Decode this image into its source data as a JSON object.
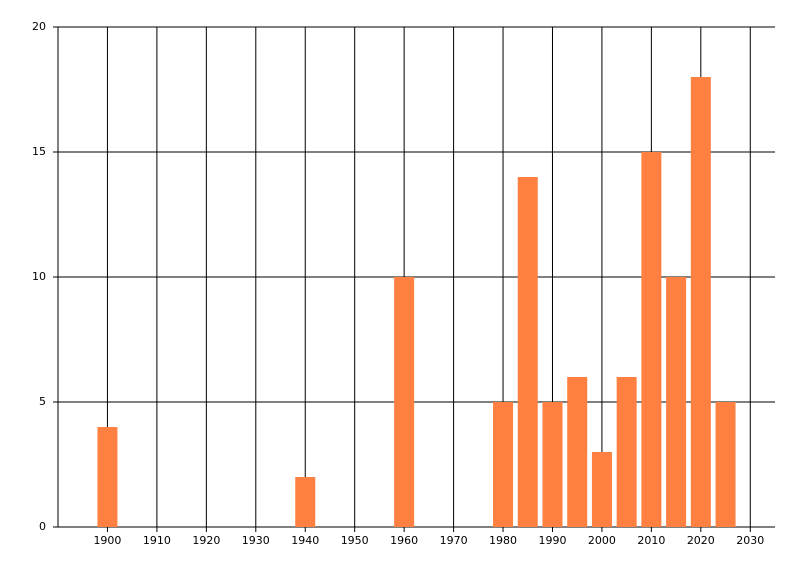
{
  "chart_data": {
    "type": "bar",
    "x": [
      1900,
      1940,
      1960,
      1980,
      1985,
      1990,
      1995,
      2000,
      2005,
      2010,
      2015,
      2020,
      2025
    ],
    "values": [
      4,
      2,
      10,
      5,
      14,
      5,
      6,
      3,
      6,
      15,
      10,
      18,
      5
    ],
    "color": "#ff8040",
    "xlim": [
      1890,
      2035
    ],
    "xticks": [
      1900,
      1910,
      1920,
      1930,
      1940,
      1950,
      1960,
      1970,
      1980,
      1990,
      2000,
      2010,
      2020,
      2030
    ],
    "ylim": [
      0,
      20
    ],
    "yticks": [
      0,
      5,
      10,
      15,
      20
    ],
    "grid": true
  }
}
